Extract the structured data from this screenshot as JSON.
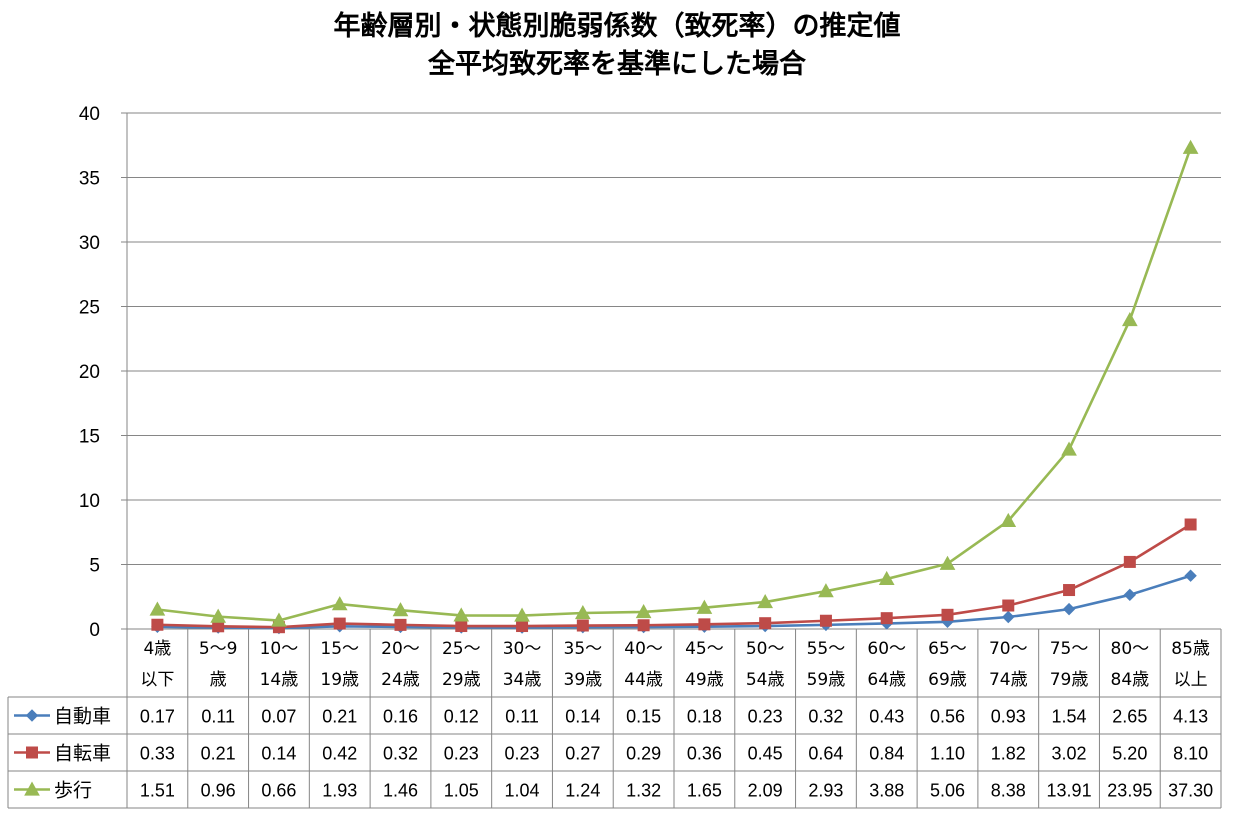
{
  "chart_data": {
    "type": "line",
    "title": [
      "年齢層別・状態別脆弱係数（致死率）の推定値",
      "全平均致死率を基準にした場合"
    ],
    "categories": [
      [
        "4歳",
        "以下"
      ],
      [
        "5〜9",
        "歳"
      ],
      [
        "10〜",
        "14歳"
      ],
      [
        "15〜",
        "19歳"
      ],
      [
        "20〜",
        "24歳"
      ],
      [
        "25〜",
        "29歳"
      ],
      [
        "30〜",
        "34歳"
      ],
      [
        "35〜",
        "39歳"
      ],
      [
        "40〜",
        "44歳"
      ],
      [
        "45〜",
        "49歳"
      ],
      [
        "50〜",
        "54歳"
      ],
      [
        "55〜",
        "59歳"
      ],
      [
        "60〜",
        "64歳"
      ],
      [
        "65〜",
        "69歳"
      ],
      [
        "70〜",
        "74歳"
      ],
      [
        "75〜",
        "79歳"
      ],
      [
        "80〜",
        "84歳"
      ],
      [
        "85歳",
        "以上"
      ]
    ],
    "series": [
      {
        "name": "自動車",
        "color": "#4A7EBB",
        "marker": "diamond",
        "values": [
          0.17,
          0.11,
          0.07,
          0.21,
          0.16,
          0.12,
          0.11,
          0.14,
          0.15,
          0.18,
          0.23,
          0.32,
          0.43,
          0.56,
          0.93,
          1.54,
          2.65,
          4.13
        ],
        "labels": [
          "0.17",
          "0.11",
          "0.07",
          "0.21",
          "0.16",
          "0.12",
          "0.11",
          "0.14",
          "0.15",
          "0.18",
          "0.23",
          "0.32",
          "0.43",
          "0.56",
          "0.93",
          "1.54",
          "2.65",
          "4.13"
        ]
      },
      {
        "name": "自転車",
        "color": "#BE4B48",
        "marker": "square",
        "values": [
          0.33,
          0.21,
          0.14,
          0.42,
          0.32,
          0.23,
          0.23,
          0.27,
          0.29,
          0.36,
          0.45,
          0.64,
          0.84,
          1.1,
          1.82,
          3.02,
          5.2,
          8.1
        ],
        "labels": [
          "0.33",
          "0.21",
          "0.14",
          "0.42",
          "0.32",
          "0.23",
          "0.23",
          "0.27",
          "0.29",
          "0.36",
          "0.45",
          "0.64",
          "0.84",
          "1.10",
          "1.82",
          "3.02",
          "5.20",
          "8.10"
        ]
      },
      {
        "name": "歩行",
        "color": "#98B954",
        "marker": "triangle",
        "values": [
          1.51,
          0.96,
          0.66,
          1.93,
          1.46,
          1.05,
          1.04,
          1.24,
          1.32,
          1.65,
          2.09,
          2.93,
          3.88,
          5.06,
          8.38,
          13.91,
          23.95,
          37.3
        ],
        "labels": [
          "1.51",
          "0.96",
          "0.66",
          "1.93",
          "1.46",
          "1.05",
          "1.04",
          "1.24",
          "1.32",
          "1.65",
          "2.09",
          "2.93",
          "3.88",
          "5.06",
          "8.38",
          "13.91",
          "23.95",
          "37.30"
        ]
      }
    ],
    "ylim": [
      0,
      40
    ],
    "yticks": [
      "0",
      "5",
      "10",
      "15",
      "20",
      "25",
      "30",
      "35",
      "40"
    ],
    "grid": true,
    "legend": "data-table"
  }
}
